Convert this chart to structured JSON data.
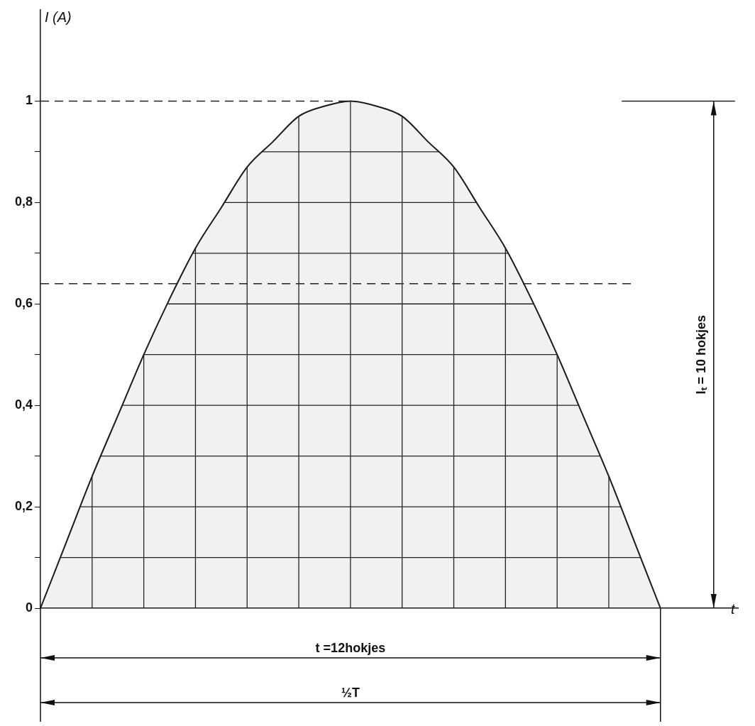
{
  "chart_data": {
    "type": "area",
    "xlabel": "t",
    "ylabel": "I (A)",
    "categories": [
      null,
      null,
      null,
      null,
      null,
      null,
      null,
      null,
      null,
      null,
      null,
      null,
      null,
      null,
      null,
      null,
      null,
      null,
      null,
      null,
      null,
      null,
      null,
      null,
      null,
      null,
      null,
      null
    ],
    "series": [
      {
        "color": "#1a1a1a",
        "values": [
          0,
          0.13,
          0.26,
          0.38,
          0.5,
          0.61,
          0.71,
          0.79,
          0.87,
          0.92,
          0.97,
          0.99,
          1,
          0.99,
          0.97,
          0.92,
          0.87,
          0.79,
          0.71,
          0.61,
          0.5,
          0.38,
          0.26,
          0.13,
          0,
          null,
          null,
          null
        ]
      }
    ],
    "ylim": [
      0,
      1.18
    ],
    "yticks": [
      0,
      {
        "value": 0.1,
        "label": null
      },
      {
        "value": 0.2,
        "label": "0,2"
      },
      {
        "value": 0.3,
        "label": null
      },
      {
        "value": 0.4,
        "label": "0,4"
      },
      {
        "value": 0.5,
        "label": null
      },
      {
        "value": 0.6,
        "label": "0,6"
      },
      {
        "value": 0.7,
        "label": null
      },
      {
        "value": 0.8,
        "label": "0,8"
      },
      {
        "value": 0.9,
        "label": null
      },
      1
    ],
    "grid": true,
    "legend": false,
    "marker": "none",
    "line_style": "solid",
    "ref_lines": [
      {
        "axis": "y",
        "value": 1,
        "line_style": "dashed"
      },
      {
        "axis": "y",
        "value": 0.64,
        "line_style": "dashed"
      }
    ],
    "annotations": [
      "t =12hokjes",
      "½T",
      "Iₜ = 10 hokjes"
    ]
  }
}
